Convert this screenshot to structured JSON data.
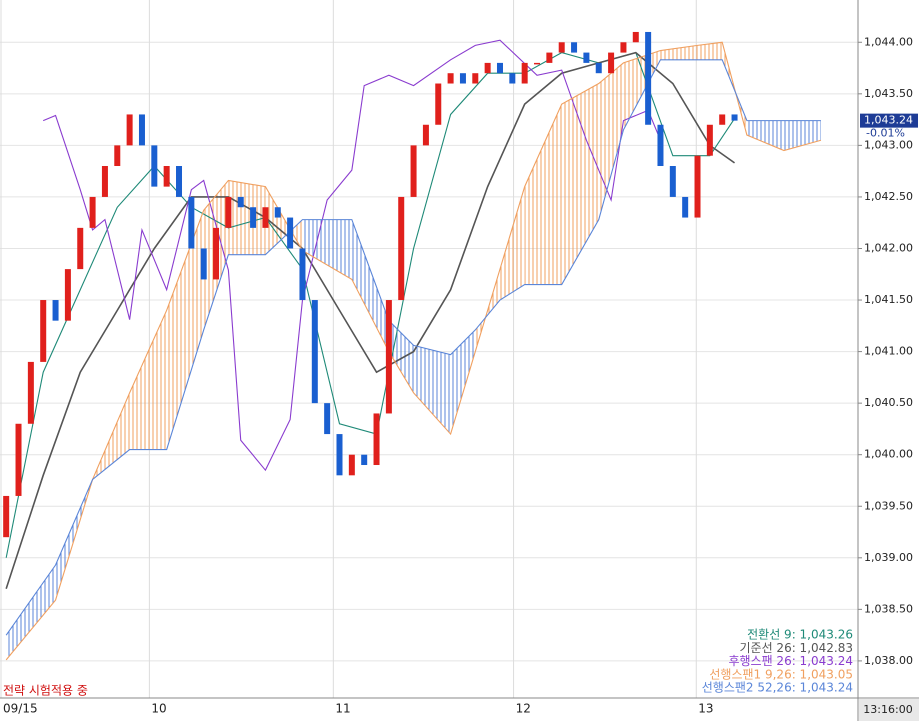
{
  "chart_data": {
    "type": "candlestick",
    "xlim": [
      -0.5,
      69
    ],
    "ylim": [
      1037.65,
      1044.41
    ],
    "xticks": [
      {
        "value": -0.5,
        "label": "09/15"
      },
      {
        "value": 11.6,
        "label": "10"
      },
      {
        "value": 26.5,
        "label": "11"
      },
      {
        "value": 41.1,
        "label": "12"
      },
      {
        "value": 55.9,
        "label": "13"
      }
    ],
    "yticks": [
      {
        "value": 1038,
        "label": "1,038.00"
      },
      {
        "value": 1038.5,
        "label": "1,038.50"
      },
      {
        "value": 1039,
        "label": "1,039.00"
      },
      {
        "value": 1039.5,
        "label": "1,039.50"
      },
      {
        "value": 1040,
        "label": "1,040.00"
      },
      {
        "value": 1040.5,
        "label": "1,040.50"
      },
      {
        "value": 1041,
        "label": "1,041.00"
      },
      {
        "value": 1041.5,
        "label": "1,041.50"
      },
      {
        "value": 1042,
        "label": "1,042.00"
      },
      {
        "value": 1042.5,
        "label": "1,042.50"
      },
      {
        "value": 1043,
        "label": "1,043.00"
      },
      {
        "value": 1043.5,
        "label": "1,043.50"
      },
      {
        "value": 1044,
        "label": "1,044.00"
      }
    ],
    "grid": true,
    "candles": {
      "up_color": "#e0201c",
      "down_color": "#1a5fd0",
      "open": [
        1039.2,
        1039.6,
        1040.3,
        1040.9,
        1041.5,
        1041.3,
        1041.8,
        1042.2,
        1042.5,
        1042.8,
        1043.0,
        1043.3,
        1043.0,
        1042.6,
        1042.8,
        1042.5,
        1042.0,
        1041.7,
        1042.2,
        1042.5,
        1042.4,
        1042.2,
        1042.4,
        1042.3,
        1042.0,
        1041.5,
        1040.5,
        1040.2,
        1039.8,
        1040.0,
        1039.9,
        1040.4,
        1041.5,
        1042.5,
        1043.0,
        1043.2,
        1043.6,
        1043.7,
        1043.6,
        1043.7,
        1043.8,
        1043.7,
        1043.6,
        1043.8,
        1043.8,
        1043.9,
        1044.0,
        1043.9,
        1043.8,
        1043.7,
        1043.9,
        1044.0,
        1044.1,
        1043.2,
        1042.8,
        1042.5,
        1042.3,
        1042.9,
        1043.2,
        1043.3
      ],
      "close": [
        1039.6,
        1040.3,
        1040.9,
        1041.5,
        1041.3,
        1041.8,
        1042.2,
        1042.5,
        1042.8,
        1043.0,
        1043.3,
        1043.0,
        1042.6,
        1042.8,
        1042.5,
        1042.0,
        1041.7,
        1042.2,
        1042.5,
        1042.4,
        1042.2,
        1042.4,
        1042.3,
        1042.0,
        1041.5,
        1040.5,
        1040.2,
        1039.8,
        1040.0,
        1039.9,
        1040.4,
        1041.5,
        1042.5,
        1043.0,
        1043.2,
        1043.6,
        1043.7,
        1043.6,
        1043.7,
        1043.8,
        1043.7,
        1043.6,
        1043.8,
        1043.8,
        1043.9,
        1044.0,
        1043.9,
        1043.8,
        1043.7,
        1043.9,
        1044.0,
        1044.1,
        1043.2,
        1042.8,
        1042.5,
        1042.3,
        1042.9,
        1043.2,
        1043.3,
        1043.24
      ]
    },
    "series": [
      {
        "name": "전환선 9: 1,043.26",
        "color": "#1f8a78",
        "x": [
          0,
          3,
          6,
          9,
          12,
          15,
          18,
          21,
          24,
          27,
          30,
          33,
          36,
          39,
          42,
          45,
          48,
          51,
          54,
          57,
          59
        ],
        "values": [
          1039.0,
          1040.8,
          1041.6,
          1042.4,
          1042.8,
          1042.4,
          1042.2,
          1042.3,
          1041.8,
          1040.3,
          1040.2,
          1042.0,
          1043.3,
          1043.7,
          1043.7,
          1043.9,
          1043.8,
          1043.9,
          1042.9,
          1042.9,
          1043.26
        ]
      },
      {
        "name": "기준선 26: 1,042.83",
        "color": "#555555",
        "x": [
          0,
          3,
          6,
          9,
          12,
          15,
          18,
          21,
          24,
          27,
          30,
          33,
          36,
          39,
          42,
          45,
          48,
          51,
          54,
          57,
          59
        ],
        "values": [
          1038.7,
          1039.8,
          1040.8,
          1041.4,
          1042.0,
          1042.5,
          1042.5,
          1042.3,
          1042.0,
          1041.4,
          1040.8,
          1041.0,
          1041.6,
          1042.6,
          1043.4,
          1043.7,
          1043.8,
          1043.9,
          1043.6,
          1043.0,
          1042.83
        ]
      },
      {
        "name": "후행스팬 26: 1,043.24",
        "color": "#8a3ccf",
        "x": [
          3,
          4,
          6,
          7,
          8,
          10,
          11,
          13,
          15,
          16,
          18,
          19,
          21,
          23,
          24,
          26,
          28,
          29,
          31,
          33,
          36,
          38,
          40,
          43,
          45,
          47,
          49,
          50,
          52,
          53
        ],
        "values": [
          1043.24,
          1043.29,
          1042.57,
          1042.18,
          1042.28,
          1041.31,
          1042.18,
          1041.6,
          1042.57,
          1042.66,
          1041.79,
          1040.14,
          1039.85,
          1040.34,
          1041.5,
          1042.47,
          1042.76,
          1043.58,
          1043.68,
          1043.58,
          1043.83,
          1043.97,
          1044.02,
          1043.68,
          1043.73,
          1043.05,
          1042.47,
          1043.24,
          1043.34,
          1043.05
        ]
      },
      {
        "name": "선행스팬1 9,26: 1,043.05",
        "color": "#f0a060",
        "x": [
          0,
          4,
          7,
          10,
          13,
          16,
          18,
          21,
          24,
          28,
          31,
          33,
          36,
          38,
          40,
          42,
          45,
          48,
          50,
          53,
          56,
          58,
          60,
          63,
          66
        ],
        "values": [
          1038.01,
          1038.59,
          1039.76,
          1040.6,
          1041.4,
          1042.37,
          1042.66,
          1042.6,
          1041.98,
          1041.7,
          1041.0,
          1040.6,
          1040.2,
          1041.0,
          1041.8,
          1042.6,
          1043.4,
          1043.6,
          1043.8,
          1043.92,
          1043.97,
          1044.0,
          1043.1,
          1042.95,
          1043.05
        ]
      },
      {
        "name": "선행스팬2 52,26: 1,043.24",
        "color": "#5b86d8",
        "x": [
          0,
          4,
          7,
          10,
          13,
          16,
          18,
          21,
          24,
          28,
          31,
          33,
          36,
          38,
          40,
          42,
          45,
          48,
          50,
          53,
          56,
          58,
          60,
          63,
          66
        ],
        "values": [
          1038.25,
          1038.93,
          1039.76,
          1040.05,
          1040.05,
          1041.21,
          1041.94,
          1041.94,
          1042.28,
          1042.28,
          1041.3,
          1041.06,
          1040.97,
          1041.21,
          1041.5,
          1041.65,
          1041.65,
          1042.28,
          1043.15,
          1043.83,
          1043.83,
          1043.83,
          1043.24,
          1043.24,
          1043.24
        ]
      }
    ],
    "annotations": {
      "status": "전략 시험적용 중",
      "time": "13:16:00",
      "price": {
        "value": 1043.24,
        "label": "1,043.24"
      },
      "change": "-0.01%"
    }
  }
}
